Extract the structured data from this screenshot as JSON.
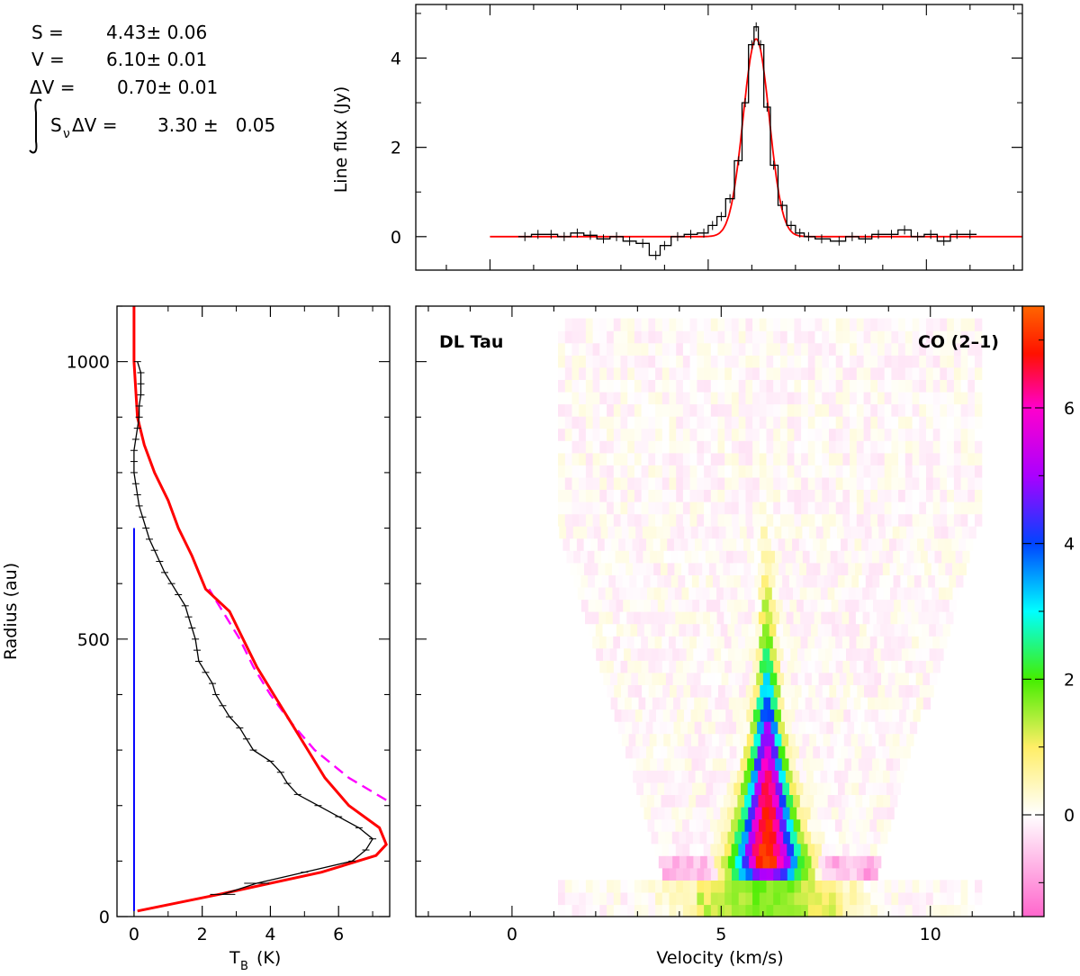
{
  "fit": {
    "s_label": "S =",
    "s_value": "4.43± 0.06",
    "v_label": "V =",
    "v_value": "6.10± 0.01",
    "dv_label": "ΔV =",
    "dv_value": "0.70± 0.01",
    "int_label": "S",
    "int_sub": "ν",
    "int_rest": "ΔV =",
    "int_value": "3.30 ±   0.05"
  },
  "chart_data": [
    {
      "type": "line",
      "ylabel": "Line flux (Jy)",
      "xlim": [
        -1.7,
        12.2
      ],
      "ylim": [
        -0.75,
        5.2
      ],
      "yticks": [
        "0",
        "2",
        "4"
      ],
      "series": [
        {
          "style": "data-histogram-errorbars",
          "color": "#000000",
          "x": [
            0.8,
            1.1,
            1.4,
            1.7,
            2.0,
            2.3,
            2.6,
            2.9,
            3.2,
            3.5,
            3.8,
            4.0,
            4.3,
            4.6,
            4.9,
            5.1,
            5.3,
            5.5,
            5.7,
            5.85,
            6.0,
            6.1,
            6.2,
            6.35,
            6.5,
            6.7,
            6.9,
            7.1,
            7.3,
            7.6,
            8.0,
            8.3,
            8.6,
            8.9,
            9.2,
            9.5,
            9.8,
            10.1,
            10.4,
            10.7,
            11.0
          ],
          "y": [
            0.0,
            0.05,
            0.05,
            0.0,
            0.08,
            0.03,
            -0.05,
            0.0,
            -0.1,
            -0.15,
            -0.42,
            -0.2,
            0.0,
            0.05,
            0.08,
            0.25,
            0.45,
            0.85,
            1.7,
            3.0,
            4.3,
            4.7,
            4.3,
            2.9,
            1.6,
            0.7,
            0.25,
            0.08,
            0.0,
            -0.05,
            -0.1,
            0.0,
            -0.05,
            0.05,
            0.05,
            0.15,
            0.0,
            0.05,
            -0.1,
            0.05,
            0.05
          ]
        },
        {
          "style": "gaussian-fit",
          "color": "#ff0000",
          "amplitude": 4.43,
          "center": 6.1,
          "fwhm": 0.7,
          "x_range": [
            0.0,
            12.2
          ]
        }
      ]
    },
    {
      "type": "line",
      "xlabel": "T",
      "xlabel_sub": "B",
      "xlabel_rest": "(K)",
      "ylabel": "Radius (au)",
      "xlim": [
        -0.5,
        7.5
      ],
      "ylim": [
        0,
        1100
      ],
      "xticks": [
        "0",
        "2",
        "4",
        "6"
      ],
      "yticks": [
        "0",
        "500",
        "1000"
      ],
      "series": [
        {
          "style": "profile-errorbars",
          "color": "#000000",
          "r": [
            40,
            60,
            80,
            100,
            120,
            140,
            160,
            180,
            200,
            220,
            240,
            260,
            280,
            300,
            320,
            340,
            360,
            380,
            400,
            420,
            440,
            460,
            480,
            500,
            520,
            540,
            560,
            580,
            600,
            620,
            640,
            660,
            680,
            700,
            720,
            740,
            760,
            780,
            800,
            820,
            840,
            860,
            880,
            900,
            920,
            940,
            960,
            980,
            1000
          ],
          "tb": [
            2.6,
            3.6,
            5.0,
            6.4,
            6.8,
            7.0,
            6.6,
            6.0,
            5.4,
            4.8,
            4.5,
            4.3,
            4.0,
            3.5,
            3.3,
            3.1,
            2.8,
            2.6,
            2.4,
            2.3,
            2.1,
            1.9,
            1.85,
            1.8,
            1.7,
            1.6,
            1.5,
            1.3,
            1.1,
            0.9,
            0.75,
            0.6,
            0.45,
            0.35,
            0.25,
            0.15,
            0.1,
            0.05,
            0.0,
            0.0,
            0.0,
            0.05,
            0.1,
            0.15,
            0.15,
            0.2,
            0.2,
            0.2,
            0.1
          ]
        },
        {
          "style": "model",
          "color": "#ff0000",
          "r": [
            10,
            40,
            80,
            110,
            130,
            160,
            200,
            250,
            300,
            350,
            400,
            450,
            500,
            550,
            590,
            620,
            650,
            700,
            750,
            800,
            850,
            900,
            1000,
            1050,
            1100
          ],
          "tb": [
            0.1,
            2.5,
            5.5,
            7.1,
            7.4,
            7.2,
            6.3,
            5.6,
            5.1,
            4.6,
            4.1,
            3.6,
            3.2,
            2.8,
            2.1,
            1.9,
            1.7,
            1.3,
            1.0,
            0.6,
            0.3,
            0.1,
            0.0,
            0.0,
            0.0
          ]
        },
        {
          "style": "dashed",
          "color": "#ff00ff",
          "r": [
            210,
            250,
            300,
            350,
            400,
            450,
            500,
            550,
            590
          ],
          "tb": [
            7.4,
            6.3,
            5.3,
            4.6,
            4.0,
            3.5,
            3.1,
            2.6,
            2.2
          ]
        },
        {
          "style": "vertical-line",
          "color": "#0000ff",
          "tb": 0.0,
          "r_range": [
            10,
            700
          ]
        }
      ]
    },
    {
      "type": "heatmap",
      "xlabel": "Velocity (km/s)",
      "xlim": [
        -2.3,
        12.2
      ],
      "ylim": [
        0,
        1100
      ],
      "xticks": [
        "0",
        "5",
        "10"
      ],
      "annotations": [
        "DL Tau",
        "CO (2–1)"
      ],
      "colorbar": {
        "min": -1.5,
        "max": 7.5,
        "ticks": [
          "0",
          "2",
          "4",
          "6"
        ],
        "colors": [
          "#ff66cc",
          "#ffffff",
          "#ffee66",
          "#44ee00",
          "#00ffff",
          "#0044ff",
          "#aa00ff",
          "#ff00cc",
          "#ff1100",
          "#ff6600"
        ]
      },
      "peak_velocity": 6.1,
      "peak_tb": 7.2,
      "peak_radius": 130
    }
  ]
}
